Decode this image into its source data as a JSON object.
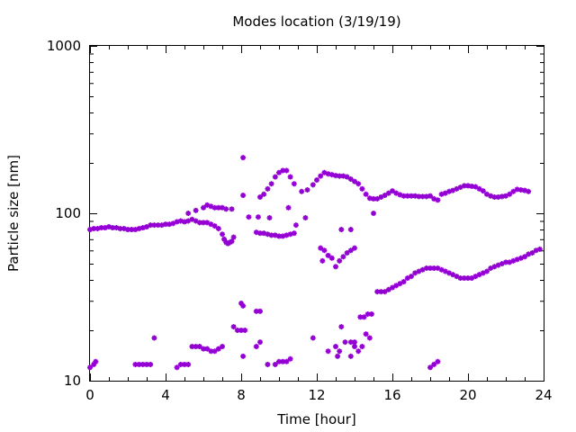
{
  "chart_data": {
    "type": "scatter",
    "title": "Modes location (3/19/19)",
    "xlabel": "Time [hour]",
    "ylabel": "Particle size [nm]",
    "xlim": [
      0,
      24
    ],
    "ylim": [
      10,
      1000
    ],
    "y_scale": "log",
    "xticks": [
      0,
      4,
      8,
      12,
      16,
      20,
      24
    ],
    "yticks": [
      10,
      100,
      1000
    ],
    "grid": false,
    "legend": "none",
    "marker": "star",
    "color": "#9400D3",
    "series": [
      {
        "values_note_hidden": "",
        "points": [
          [
            0.0,
            80
          ],
          [
            0.2,
            81
          ],
          [
            0.4,
            81
          ],
          [
            0.6,
            82
          ],
          [
            0.8,
            82
          ],
          [
            1.0,
            83
          ],
          [
            1.2,
            82
          ],
          [
            1.4,
            82
          ],
          [
            1.6,
            81
          ],
          [
            1.8,
            81
          ],
          [
            2.0,
            80
          ],
          [
            2.2,
            80
          ],
          [
            2.4,
            80
          ],
          [
            2.6,
            81
          ],
          [
            2.8,
            82
          ],
          [
            3.0,
            83
          ],
          [
            3.2,
            85
          ],
          [
            3.4,
            85
          ],
          [
            3.6,
            85
          ],
          [
            3.8,
            85
          ],
          [
            4.0,
            86
          ],
          [
            4.2,
            86
          ],
          [
            4.4,
            87
          ],
          [
            4.6,
            89
          ],
          [
            4.8,
            90
          ],
          [
            5.0,
            89
          ],
          [
            5.2,
            90
          ],
          [
            5.4,
            92
          ],
          [
            5.6,
            90
          ],
          [
            5.8,
            88
          ],
          [
            6.0,
            88
          ],
          [
            6.2,
            88
          ],
          [
            6.4,
            86
          ],
          [
            6.6,
            84
          ],
          [
            6.8,
            81
          ],
          [
            7.0,
            75
          ],
          [
            7.1,
            70
          ],
          [
            7.2,
            67
          ],
          [
            7.3,
            66
          ],
          [
            7.4,
            67
          ],
          [
            7.5,
            68
          ],
          [
            7.6,
            72
          ],
          [
            8.8,
            77
          ],
          [
            9.0,
            76
          ],
          [
            9.2,
            76
          ],
          [
            9.4,
            75
          ],
          [
            9.6,
            74
          ],
          [
            9.8,
            74
          ],
          [
            10.0,
            73
          ],
          [
            10.2,
            73
          ],
          [
            10.4,
            74
          ],
          [
            10.6,
            75
          ],
          [
            10.8,
            76
          ],
          [
            8.4,
            95
          ],
          [
            8.9,
            95
          ],
          [
            9.5,
            94
          ],
          [
            10.5,
            108
          ],
          [
            10.9,
            85
          ],
          [
            11.4,
            94
          ],
          [
            11.2,
            135
          ],
          [
            11.5,
            138
          ],
          [
            11.8,
            148
          ],
          [
            12.0,
            158
          ],
          [
            12.2,
            167
          ],
          [
            12.4,
            175
          ],
          [
            12.6,
            172
          ],
          [
            12.8,
            170
          ],
          [
            13.0,
            168
          ],
          [
            13.2,
            167
          ],
          [
            13.4,
            167
          ],
          [
            13.6,
            165
          ],
          [
            13.8,
            160
          ],
          [
            14.0,
            155
          ],
          [
            14.2,
            150
          ],
          [
            14.4,
            140
          ],
          [
            14.6,
            130
          ],
          [
            14.8,
            123
          ],
          [
            15.0,
            122
          ],
          [
            15.2,
            122
          ],
          [
            15.4,
            125
          ],
          [
            15.6,
            128
          ],
          [
            15.8,
            132
          ],
          [
            16.0,
            136
          ],
          [
            16.2,
            132
          ],
          [
            16.4,
            129
          ],
          [
            16.6,
            127
          ],
          [
            16.8,
            127
          ],
          [
            17.0,
            127
          ],
          [
            17.2,
            127
          ],
          [
            17.4,
            126
          ],
          [
            17.6,
            126
          ],
          [
            17.8,
            126
          ],
          [
            18.0,
            127
          ],
          [
            18.2,
            122
          ],
          [
            18.4,
            120
          ],
          [
            18.6,
            130
          ],
          [
            18.8,
            132
          ],
          [
            19.0,
            135
          ],
          [
            19.2,
            137
          ],
          [
            19.4,
            140
          ],
          [
            19.6,
            143
          ],
          [
            19.8,
            146
          ],
          [
            20.0,
            146
          ],
          [
            20.2,
            145
          ],
          [
            20.4,
            144
          ],
          [
            20.6,
            140
          ],
          [
            20.8,
            136
          ],
          [
            21.0,
            130
          ],
          [
            21.2,
            127
          ],
          [
            21.4,
            125
          ],
          [
            21.6,
            125
          ],
          [
            21.8,
            126
          ],
          [
            22.0,
            127
          ],
          [
            22.2,
            130
          ],
          [
            22.4,
            135
          ],
          [
            22.6,
            139
          ],
          [
            22.8,
            138
          ],
          [
            23.0,
            137
          ],
          [
            23.2,
            135
          ],
          [
            5.2,
            100
          ],
          [
            5.6,
            104
          ],
          [
            6.0,
            108
          ],
          [
            6.2,
            112
          ],
          [
            6.4,
            110
          ],
          [
            6.6,
            108
          ],
          [
            6.8,
            108
          ],
          [
            7.0,
            108
          ],
          [
            7.2,
            106
          ],
          [
            7.5,
            106
          ],
          [
            8.1,
            128
          ],
          [
            8.1,
            215
          ],
          [
            9.0,
            125
          ],
          [
            9.2,
            130
          ],
          [
            9.4,
            140
          ],
          [
            9.6,
            150
          ],
          [
            9.8,
            165
          ],
          [
            10.0,
            175
          ],
          [
            10.2,
            180
          ],
          [
            10.4,
            180
          ],
          [
            10.6,
            165
          ],
          [
            10.8,
            150
          ],
          [
            15.0,
            100
          ],
          [
            12.2,
            62
          ],
          [
            12.4,
            60
          ],
          [
            12.6,
            56
          ],
          [
            12.8,
            54
          ],
          [
            13.0,
            48
          ],
          [
            13.2,
            52
          ],
          [
            13.4,
            55
          ],
          [
            13.6,
            58
          ],
          [
            13.8,
            60
          ],
          [
            14.0,
            62
          ],
          [
            12.3,
            52
          ],
          [
            13.3,
            80
          ],
          [
            13.8,
            80
          ],
          [
            15.2,
            34
          ],
          [
            15.4,
            34
          ],
          [
            15.6,
            34
          ],
          [
            15.8,
            35
          ],
          [
            16.0,
            36
          ],
          [
            16.2,
            37
          ],
          [
            16.4,
            38
          ],
          [
            16.6,
            39
          ],
          [
            16.8,
            41
          ],
          [
            17.0,
            42
          ],
          [
            17.2,
            44
          ],
          [
            17.4,
            45
          ],
          [
            17.6,
            46
          ],
          [
            17.8,
            47
          ],
          [
            18.0,
            47
          ],
          [
            18.2,
            47
          ],
          [
            18.4,
            47
          ],
          [
            18.6,
            46
          ],
          [
            18.8,
            45
          ],
          [
            19.0,
            44
          ],
          [
            19.2,
            43
          ],
          [
            19.4,
            42
          ],
          [
            19.6,
            41
          ],
          [
            19.8,
            41
          ],
          [
            20.0,
            41
          ],
          [
            20.2,
            41
          ],
          [
            20.4,
            42
          ],
          [
            20.6,
            43
          ],
          [
            20.8,
            44
          ],
          [
            21.0,
            45
          ],
          [
            21.2,
            47
          ],
          [
            21.4,
            48
          ],
          [
            21.6,
            49
          ],
          [
            21.8,
            50
          ],
          [
            22.0,
            51
          ],
          [
            22.2,
            51
          ],
          [
            22.4,
            52
          ],
          [
            22.6,
            53
          ],
          [
            22.8,
            54
          ],
          [
            23.0,
            55
          ],
          [
            23.2,
            57
          ],
          [
            23.4,
            58
          ],
          [
            23.6,
            60
          ],
          [
            23.8,
            61
          ],
          [
            14.3,
            24
          ],
          [
            14.5,
            24
          ],
          [
            14.7,
            25
          ],
          [
            14.9,
            25
          ],
          [
            8.0,
            29
          ],
          [
            8.1,
            28
          ],
          [
            8.8,
            26
          ],
          [
            9.0,
            26
          ],
          [
            7.8,
            20
          ],
          [
            8.0,
            20
          ],
          [
            8.2,
            20
          ],
          [
            8.1,
            14
          ],
          [
            7.6,
            21
          ],
          [
            5.4,
            16
          ],
          [
            5.6,
            16
          ],
          [
            5.8,
            16
          ],
          [
            6.0,
            15.5
          ],
          [
            6.2,
            15.5
          ],
          [
            6.4,
            15
          ],
          [
            6.6,
            15
          ],
          [
            6.8,
            15.5
          ],
          [
            7.0,
            16
          ],
          [
            3.4,
            18
          ],
          [
            8.8,
            16
          ],
          [
            9.0,
            17
          ],
          [
            11.8,
            18
          ],
          [
            12.6,
            15
          ],
          [
            13.0,
            16
          ],
          [
            13.2,
            15
          ],
          [
            13.5,
            17
          ],
          [
            13.8,
            17
          ],
          [
            14.0,
            16
          ],
          [
            14.2,
            15
          ],
          [
            14.4,
            16
          ],
          [
            14.6,
            19
          ],
          [
            14.8,
            18
          ],
          [
            13.3,
            21
          ],
          [
            13.1,
            14
          ],
          [
            13.8,
            14
          ],
          [
            14.0,
            17
          ],
          [
            0.0,
            12
          ],
          [
            0.2,
            12.5
          ],
          [
            0.3,
            13
          ],
          [
            2.4,
            12.5
          ],
          [
            2.6,
            12.5
          ],
          [
            2.8,
            12.5
          ],
          [
            3.0,
            12.5
          ],
          [
            3.2,
            12.5
          ],
          [
            4.6,
            12
          ],
          [
            4.8,
            12.5
          ],
          [
            5.0,
            12.5
          ],
          [
            5.2,
            12.5
          ],
          [
            9.4,
            12.5
          ],
          [
            9.8,
            12.5
          ],
          [
            10.0,
            13
          ],
          [
            10.2,
            13
          ],
          [
            10.4,
            13
          ],
          [
            10.6,
            13.5
          ],
          [
            18.0,
            12
          ],
          [
            18.2,
            12.5
          ],
          [
            18.4,
            13
          ]
        ]
      }
    ]
  }
}
